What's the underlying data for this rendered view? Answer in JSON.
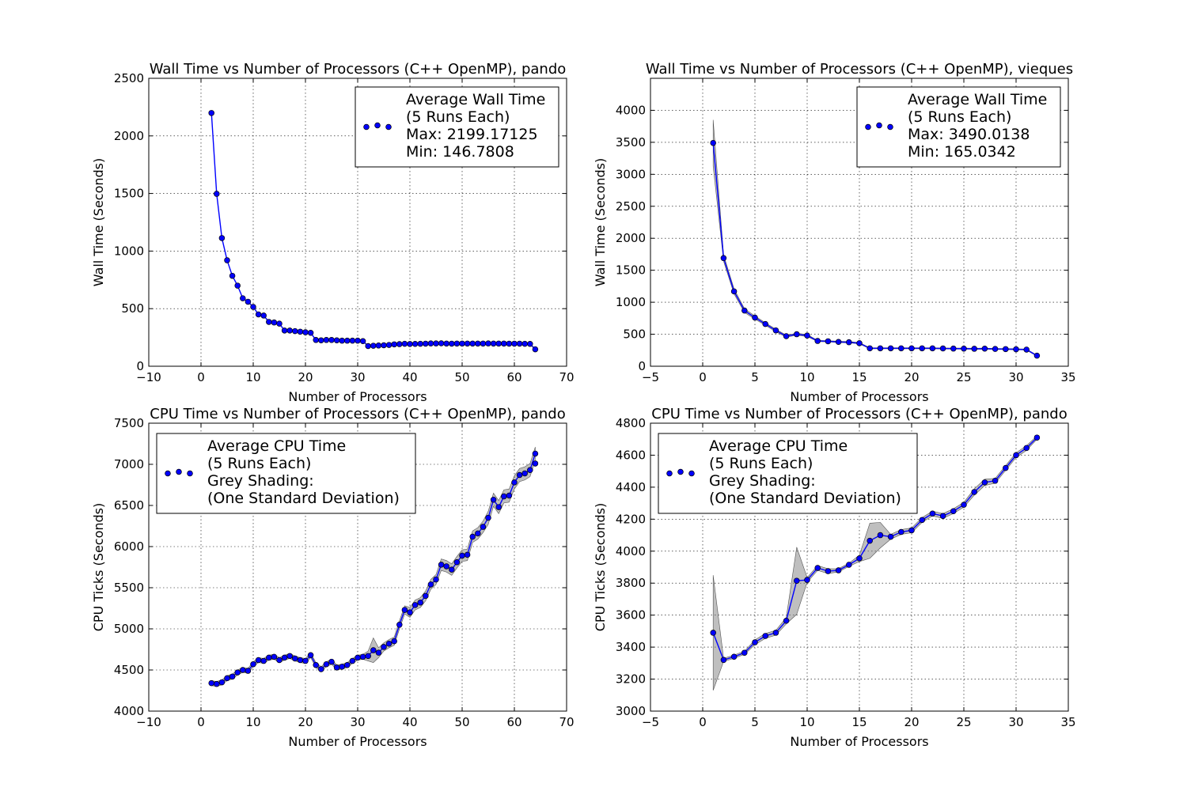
{
  "chart_data": [
    {
      "type": "line",
      "title": "Wall Time vs Number of Processors (C++ OpenMP), pando",
      "xlabel": "Number of Processors",
      "ylabel": "Wall Time (Seconds)",
      "xlim": [
        -10,
        70
      ],
      "ylim": [
        0,
        2500
      ],
      "xticks": [
        -10,
        0,
        10,
        20,
        30,
        40,
        50,
        60,
        70
      ],
      "yticks": [
        0,
        500,
        1000,
        1500,
        2000,
        2500
      ],
      "grid": true,
      "legend_position": "upper right",
      "legend": [
        "Average Wall Time",
        "(5 Runs Each)",
        "Max: 2199.17125",
        "Min: 146.7808"
      ],
      "line_color": "#0000ff",
      "marker_color": "#0000ff",
      "band_color": "#808080",
      "series": [
        {
          "x": [
            2,
            3,
            4,
            5,
            6,
            7,
            8,
            9,
            10,
            11,
            12,
            13,
            14,
            15,
            16,
            17,
            18,
            19,
            20,
            21,
            22,
            23,
            24,
            25,
            26,
            27,
            28,
            29,
            30,
            31,
            32,
            33,
            34,
            35,
            36,
            37,
            38,
            39,
            40,
            41,
            42,
            43,
            44,
            45,
            46,
            47,
            48,
            49,
            50,
            51,
            52,
            53,
            54,
            55,
            56,
            57,
            58,
            59,
            60,
            61,
            62,
            63,
            64
          ],
          "y": [
            2199,
            1497,
            1113,
            920,
            785,
            700,
            590,
            560,
            515,
            450,
            440,
            385,
            380,
            370,
            310,
            310,
            305,
            300,
            295,
            290,
            228,
            225,
            228,
            228,
            225,
            222,
            222,
            222,
            222,
            218,
            175,
            178,
            180,
            182,
            185,
            190,
            192,
            195,
            193,
            194,
            195,
            196,
            198,
            198,
            199,
            197,
            196,
            197,
            197,
            197,
            197,
            197,
            197,
            198,
            197,
            197,
            197,
            196,
            196,
            196,
            195,
            194,
            147
          ]
        }
      ]
    },
    {
      "type": "line",
      "title": "Wall Time vs Number of Processors (C++ OpenMP), vieques",
      "xlabel": "Number of Processors",
      "ylabel": "Wall Time (Seconds)",
      "xlim": [
        -5,
        35
      ],
      "ylim": [
        0,
        4500
      ],
      "xticks": [
        -5,
        0,
        5,
        10,
        15,
        20,
        25,
        30,
        35
      ],
      "yticks": [
        0,
        500,
        1000,
        1500,
        2000,
        2500,
        3000,
        3500,
        4000
      ],
      "grid": true,
      "legend_position": "upper right",
      "legend": [
        "Average Wall Time",
        "(5 Runs Each)",
        "Max: 3490.0138",
        "Min: 165.0342"
      ],
      "line_color": "#0000ff",
      "marker_color": "#0000ff",
      "band_color": "#808080",
      "series": [
        {
          "x": [
            1,
            2,
            3,
            4,
            5,
            6,
            7,
            8,
            9,
            10,
            11,
            12,
            13,
            14,
            15,
            16,
            17,
            18,
            19,
            20,
            21,
            22,
            23,
            24,
            25,
            26,
            27,
            28,
            29,
            30,
            31,
            32
          ],
          "y": [
            3490,
            1690,
            1170,
            870,
            760,
            660,
            560,
            470,
            500,
            480,
            395,
            390,
            380,
            375,
            360,
            280,
            280,
            280,
            280,
            280,
            280,
            280,
            278,
            276,
            275,
            273,
            275,
            270,
            268,
            265,
            260,
            165
          ],
          "std": [
            360,
            50,
            40,
            30,
            25,
            20,
            20,
            15,
            15,
            15,
            10,
            10,
            10,
            10,
            10,
            8,
            8,
            8,
            8,
            8,
            8,
            8,
            8,
            8,
            8,
            8,
            8,
            8,
            8,
            8,
            8,
            8
          ]
        }
      ]
    },
    {
      "type": "line",
      "title": "CPU Time vs Number of Processors (C++ OpenMP), pando",
      "xlabel": "Number of Processors",
      "ylabel": "CPU Ticks (Seconds)",
      "xlim": [
        -10,
        70
      ],
      "ylim": [
        4000,
        7500
      ],
      "xticks": [
        -10,
        0,
        10,
        20,
        30,
        40,
        50,
        60,
        70
      ],
      "yticks": [
        4000,
        4500,
        5000,
        5500,
        6000,
        6500,
        7000,
        7500
      ],
      "grid": true,
      "legend_position": "upper left",
      "legend": [
        "Average CPU Time",
        "(5 Runs Each)",
        "Grey Shading:",
        "(One Standard Deviation)"
      ],
      "line_color": "#0000ff",
      "marker_color": "#0000ff",
      "band_color": "#808080",
      "series": [
        {
          "x": [
            2,
            3,
            4,
            5,
            6,
            7,
            8,
            9,
            10,
            11,
            12,
            13,
            14,
            15,
            16,
            17,
            18,
            19,
            20,
            21,
            22,
            23,
            24,
            25,
            26,
            27,
            28,
            29,
            30,
            31,
            32,
            33,
            34,
            35,
            36,
            37,
            38,
            39,
            40,
            41,
            42,
            43,
            44,
            45,
            46,
            47,
            48,
            49,
            50,
            51,
            52,
            53,
            54,
            55,
            56,
            57,
            58,
            59,
            60,
            61,
            62,
            63,
            64
          ],
          "y": [
            4340,
            4330,
            4350,
            4400,
            4420,
            4470,
            4500,
            4490,
            4570,
            4620,
            4610,
            4650,
            4660,
            4620,
            4650,
            4670,
            4640,
            4620,
            4610,
            4680,
            4560,
            4510,
            4570,
            4600,
            4530,
            4540,
            4560,
            4610,
            4650,
            4660,
            4670,
            4740,
            4710,
            4780,
            4820,
            4850,
            5050,
            5230,
            5200,
            5290,
            5320,
            5400,
            5540,
            5600,
            5780,
            5760,
            5720,
            5810,
            5890,
            5900,
            6120,
            6160,
            6240,
            6350,
            6570,
            6480,
            6610,
            6620,
            6780,
            6870,
            6890,
            6930,
            7130
          ],
          "std": [
            30,
            30,
            30,
            30,
            30,
            30,
            30,
            30,
            30,
            30,
            30,
            30,
            30,
            30,
            30,
            30,
            30,
            30,
            30,
            30,
            30,
            30,
            30,
            30,
            30,
            30,
            30,
            30,
            30,
            30,
            60,
            150,
            60,
            50,
            50,
            50,
            50,
            50,
            60,
            60,
            60,
            60,
            60,
            60,
            70,
            70,
            70,
            70,
            70,
            70,
            70,
            70,
            70,
            80,
            80,
            80,
            80,
            80,
            80,
            80,
            80,
            80,
            80
          ]
        },
        {
          "x": [
            64
          ],
          "y": [
            7010
          ]
        }
      ]
    },
    {
      "type": "line",
      "title": "CPU Time vs Number of Processors (C++ OpenMP), pando",
      "xlabel": "Number of Processors",
      "ylabel": "CPU Ticks (Seconds)",
      "xlim": [
        -5,
        35
      ],
      "ylim": [
        3000,
        4800
      ],
      "xticks": [
        -5,
        0,
        5,
        10,
        15,
        20,
        25,
        30,
        35
      ],
      "yticks": [
        3000,
        3200,
        3400,
        3600,
        3800,
        4000,
        4200,
        4400,
        4600,
        4800
      ],
      "grid": true,
      "legend_position": "upper left",
      "legend": [
        "Average CPU Time",
        "(5 Runs Each)",
        "Grey Shading:",
        "(One Standard Deviation)"
      ],
      "line_color": "#0000ff",
      "marker_color": "#0000ff",
      "band_color": "#808080",
      "series": [
        {
          "x": [
            1,
            2,
            3,
            4,
            5,
            6,
            7,
            8,
            9,
            10,
            11,
            12,
            13,
            14,
            15,
            16,
            17,
            18,
            19,
            20,
            21,
            22,
            23,
            24,
            25,
            26,
            27,
            28,
            29,
            30,
            31,
            32
          ],
          "y": [
            3490,
            3320,
            3340,
            3365,
            3430,
            3470,
            3490,
            3565,
            3815,
            3820,
            3895,
            3875,
            3880,
            3915,
            3955,
            4065,
            4100,
            4090,
            4120,
            4130,
            4195,
            4235,
            4220,
            4250,
            4290,
            4370,
            4430,
            4440,
            4520,
            4600,
            4645,
            4710
          ],
          "std": [
            360,
            10,
            10,
            10,
            15,
            15,
            15,
            20,
            210,
            15,
            15,
            15,
            10,
            10,
            20,
            110,
            80,
            15,
            15,
            15,
            15,
            15,
            15,
            15,
            15,
            20,
            20,
            15,
            15,
            15,
            15,
            10
          ]
        }
      ]
    }
  ]
}
